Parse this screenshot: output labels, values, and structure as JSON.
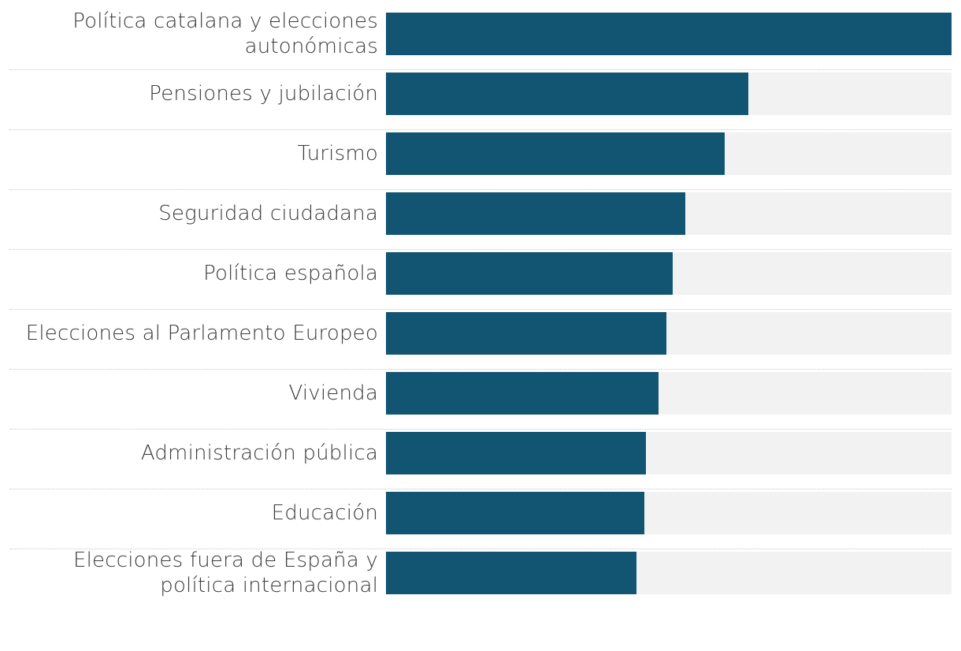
{
  "chart_data": {
    "type": "bar",
    "orientation": "horizontal",
    "title": "",
    "xlabel": "",
    "ylabel": "",
    "xlim": [
      0,
      100
    ],
    "grid": false,
    "legend": "none",
    "bar_color": "#125573",
    "track_color": "#f2f2f2",
    "categories": [
      "Política catalana y elecciones autonómicas",
      "Pensiones y jubilación",
      "Turismo",
      "Seguridad ciudadana",
      "Política española",
      "Elecciones al Parlamento Europeo",
      "Vivienda",
      "Administración pública",
      "Educación",
      "Elecciones fuera de España y política internacional"
    ],
    "values": [
      100,
      64.1,
      59.9,
      52.9,
      50.7,
      49.6,
      48.2,
      46.0,
      45.7,
      44.3
    ]
  }
}
